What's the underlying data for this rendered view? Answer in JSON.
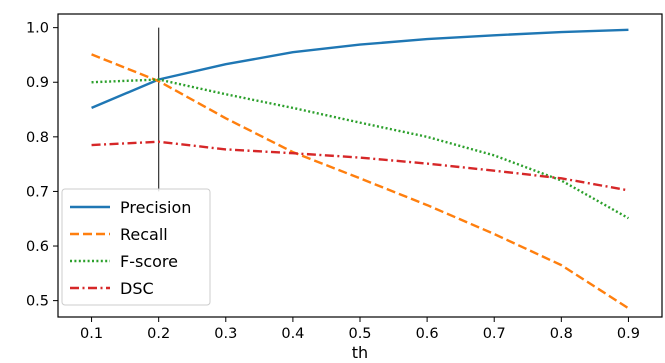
{
  "chart_data": {
    "type": "line",
    "xlabel": "th",
    "ylabel": "",
    "xlim": [
      0.05,
      0.95
    ],
    "ylim": [
      0.47,
      1.025
    ],
    "x_ticks": [
      "0.1",
      "0.2",
      "0.3",
      "0.4",
      "0.5",
      "0.6",
      "0.7",
      "0.8",
      "0.9"
    ],
    "y_ticks": [
      "0.5",
      "0.6",
      "0.7",
      "0.8",
      "0.9",
      "1.0"
    ],
    "x": [
      0.1,
      0.2,
      0.3,
      0.4,
      0.5,
      0.6,
      0.7,
      0.8,
      0.9
    ],
    "series": [
      {
        "name": "Precision",
        "color": "#1f77b4",
        "style": "solid",
        "values": [
          0.853,
          0.905,
          0.933,
          0.955,
          0.969,
          0.979,
          0.986,
          0.992,
          0.996
        ]
      },
      {
        "name": "Recall",
        "color": "#ff7f0e",
        "style": "dashed",
        "values": [
          0.951,
          0.902,
          0.834,
          0.772,
          0.724,
          0.675,
          0.622,
          0.565,
          0.486
        ]
      },
      {
        "name": "F-score",
        "color": "#2ca02c",
        "style": "dotted",
        "values": [
          0.9,
          0.905,
          0.878,
          0.853,
          0.826,
          0.8,
          0.766,
          0.72,
          0.651
        ]
      },
      {
        "name": "DSC",
        "color": "#d62728",
        "style": "dashdot",
        "values": [
          0.785,
          0.791,
          0.777,
          0.77,
          0.762,
          0.751,
          0.738,
          0.724,
          0.702
        ]
      }
    ],
    "vertical_marker_x": 0.2,
    "grid": false,
    "legend_position": "lower-left"
  }
}
